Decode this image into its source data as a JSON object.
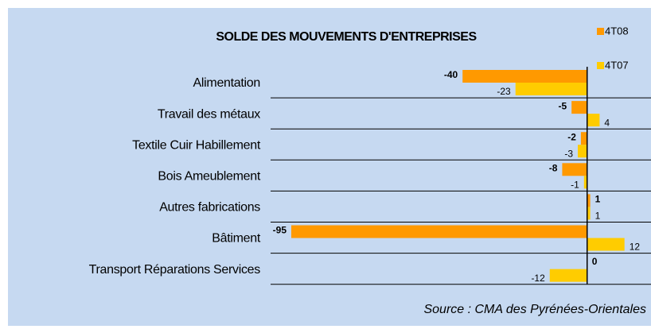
{
  "chart_data": {
    "type": "bar",
    "orientation": "horizontal",
    "title": "SOLDE DES MOUVEMENTS D'ENTREPRISES",
    "categories": [
      "Alimentation",
      "Travail des métaux",
      "Textile Cuir Habillement",
      "Bois Ameublement",
      "Autres fabrications",
      "Bâtiment",
      "Transport Réparations Services"
    ],
    "series": [
      {
        "name": "4T08",
        "color": "#ff9900",
        "values": [
          -40,
          -5,
          -2,
          -8,
          1,
          -95,
          0
        ]
      },
      {
        "name": "4T07",
        "color": "#ffcc00",
        "values": [
          -23,
          4,
          -3,
          -1,
          1,
          12,
          -12
        ]
      }
    ],
    "xlim": [
      -95,
      20
    ],
    "source": "Source : CMA des Pyrénées-Orientales"
  }
}
